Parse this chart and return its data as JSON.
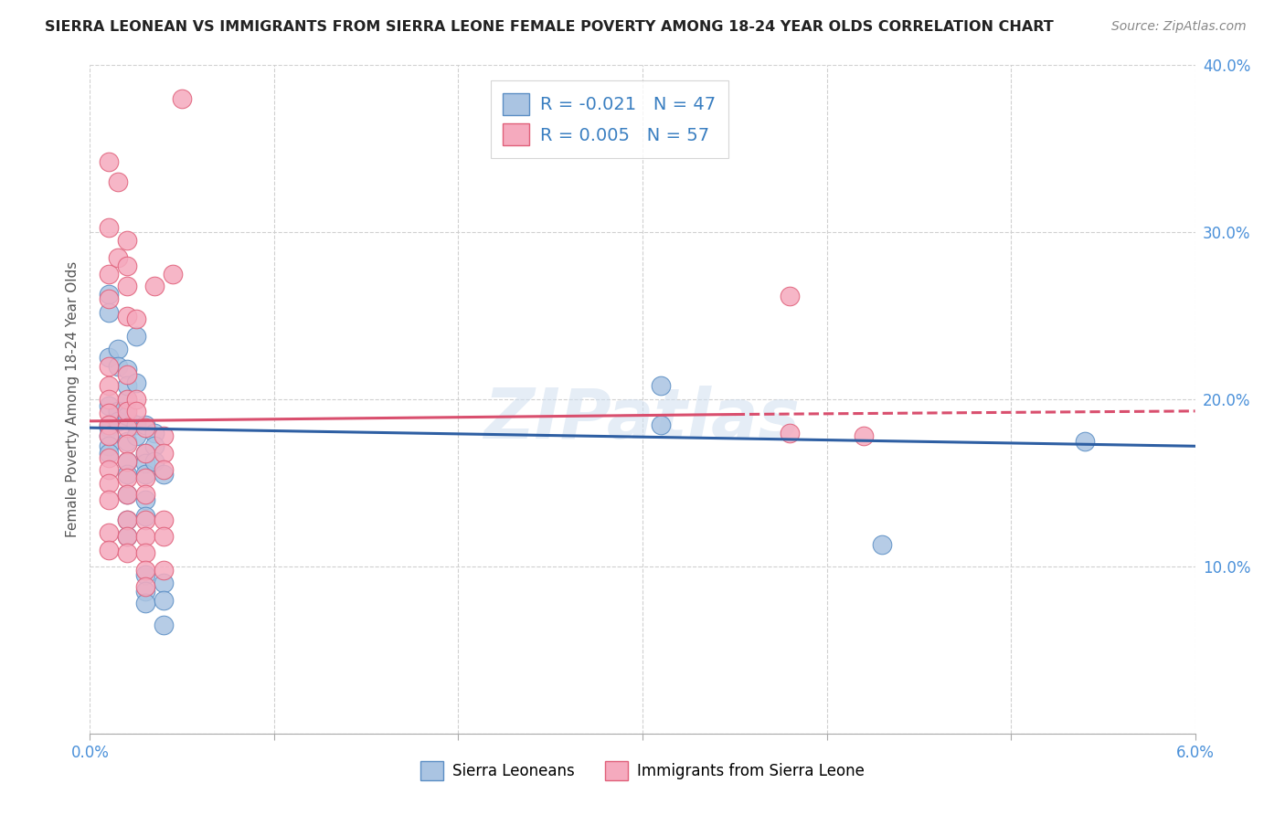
{
  "title": "SIERRA LEONEAN VS IMMIGRANTS FROM SIERRA LEONE FEMALE POVERTY AMONG 18-24 YEAR OLDS CORRELATION CHART",
  "source": "Source: ZipAtlas.com",
  "ylabel": "Female Poverty Among 18-24 Year Olds",
  "xlim": [
    0,
    0.06
  ],
  "ylim": [
    0,
    0.4
  ],
  "xticks": [
    0.0,
    0.01,
    0.02,
    0.03,
    0.04,
    0.05,
    0.06
  ],
  "xtick_labels": [
    "0.0%",
    "",
    "",
    "",
    "",
    "",
    "6.0%"
  ],
  "yticks": [
    0.0,
    0.1,
    0.2,
    0.3,
    0.4
  ],
  "ytick_labels": [
    "",
    "10.0%",
    "20.0%",
    "30.0%",
    "40.0%"
  ],
  "blue_label": "Sierra Leoneans",
  "pink_label": "Immigrants from Sierra Leone",
  "blue_R": -0.021,
  "blue_N": 47,
  "pink_R": 0.005,
  "pink_N": 57,
  "blue_color": "#aac4e2",
  "pink_color": "#f5aabe",
  "blue_edge_color": "#5b8ec4",
  "pink_edge_color": "#e0607a",
  "blue_line_color": "#2e5fa3",
  "pink_line_color": "#d94f6e",
  "blue_trend": [
    0.0,
    0.06,
    0.183,
    0.172
  ],
  "pink_trend_solid": [
    0.0,
    0.035,
    0.187,
    0.191
  ],
  "pink_trend_dash": [
    0.035,
    0.06,
    0.191,
    0.193
  ],
  "blue_scatter": [
    [
      0.001,
      0.263
    ],
    [
      0.001,
      0.252
    ],
    [
      0.001,
      0.225
    ],
    [
      0.002,
      0.2
    ],
    [
      0.001,
      0.196
    ],
    [
      0.001,
      0.183
    ],
    [
      0.001,
      0.178
    ],
    [
      0.001,
      0.172
    ],
    [
      0.001,
      0.168
    ],
    [
      0.001,
      0.185
    ],
    [
      0.0015,
      0.23
    ],
    [
      0.0015,
      0.22
    ],
    [
      0.0015,
      0.193
    ],
    [
      0.0015,
      0.187
    ],
    [
      0.002,
      0.218
    ],
    [
      0.002,
      0.208
    ],
    [
      0.002,
      0.19
    ],
    [
      0.002,
      0.175
    ],
    [
      0.002,
      0.163
    ],
    [
      0.002,
      0.155
    ],
    [
      0.002,
      0.143
    ],
    [
      0.002,
      0.128
    ],
    [
      0.002,
      0.118
    ],
    [
      0.0025,
      0.238
    ],
    [
      0.0025,
      0.21
    ],
    [
      0.0025,
      0.185
    ],
    [
      0.0025,
      0.178
    ],
    [
      0.003,
      0.185
    ],
    [
      0.003,
      0.168
    ],
    [
      0.003,
      0.162
    ],
    [
      0.003,
      0.155
    ],
    [
      0.003,
      0.14
    ],
    [
      0.003,
      0.13
    ],
    [
      0.003,
      0.095
    ],
    [
      0.003,
      0.085
    ],
    [
      0.003,
      0.078
    ],
    [
      0.0035,
      0.18
    ],
    [
      0.0035,
      0.172
    ],
    [
      0.0035,
      0.163
    ],
    [
      0.004,
      0.155
    ],
    [
      0.004,
      0.09
    ],
    [
      0.004,
      0.08
    ],
    [
      0.004,
      0.065
    ],
    [
      0.031,
      0.208
    ],
    [
      0.031,
      0.185
    ],
    [
      0.054,
      0.175
    ],
    [
      0.043,
      0.113
    ]
  ],
  "pink_scatter": [
    [
      0.001,
      0.342
    ],
    [
      0.001,
      0.303
    ],
    [
      0.001,
      0.275
    ],
    [
      0.001,
      0.26
    ],
    [
      0.001,
      0.22
    ],
    [
      0.001,
      0.208
    ],
    [
      0.001,
      0.2
    ],
    [
      0.001,
      0.192
    ],
    [
      0.001,
      0.185
    ],
    [
      0.001,
      0.178
    ],
    [
      0.001,
      0.165
    ],
    [
      0.001,
      0.158
    ],
    [
      0.001,
      0.15
    ],
    [
      0.001,
      0.14
    ],
    [
      0.001,
      0.12
    ],
    [
      0.001,
      0.11
    ],
    [
      0.0015,
      0.33
    ],
    [
      0.0015,
      0.285
    ],
    [
      0.002,
      0.295
    ],
    [
      0.002,
      0.28
    ],
    [
      0.002,
      0.268
    ],
    [
      0.002,
      0.25
    ],
    [
      0.002,
      0.215
    ],
    [
      0.002,
      0.2
    ],
    [
      0.002,
      0.193
    ],
    [
      0.002,
      0.183
    ],
    [
      0.002,
      0.173
    ],
    [
      0.002,
      0.163
    ],
    [
      0.002,
      0.153
    ],
    [
      0.002,
      0.143
    ],
    [
      0.002,
      0.128
    ],
    [
      0.002,
      0.118
    ],
    [
      0.002,
      0.108
    ],
    [
      0.0025,
      0.248
    ],
    [
      0.0025,
      0.2
    ],
    [
      0.0025,
      0.193
    ],
    [
      0.003,
      0.183
    ],
    [
      0.003,
      0.168
    ],
    [
      0.003,
      0.153
    ],
    [
      0.003,
      0.143
    ],
    [
      0.003,
      0.128
    ],
    [
      0.003,
      0.118
    ],
    [
      0.003,
      0.108
    ],
    [
      0.003,
      0.098
    ],
    [
      0.003,
      0.088
    ],
    [
      0.0035,
      0.268
    ],
    [
      0.004,
      0.178
    ],
    [
      0.004,
      0.168
    ],
    [
      0.004,
      0.158
    ],
    [
      0.004,
      0.128
    ],
    [
      0.004,
      0.118
    ],
    [
      0.004,
      0.098
    ],
    [
      0.0045,
      0.275
    ],
    [
      0.005,
      0.38
    ],
    [
      0.038,
      0.262
    ],
    [
      0.038,
      0.18
    ],
    [
      0.042,
      0.178
    ]
  ]
}
